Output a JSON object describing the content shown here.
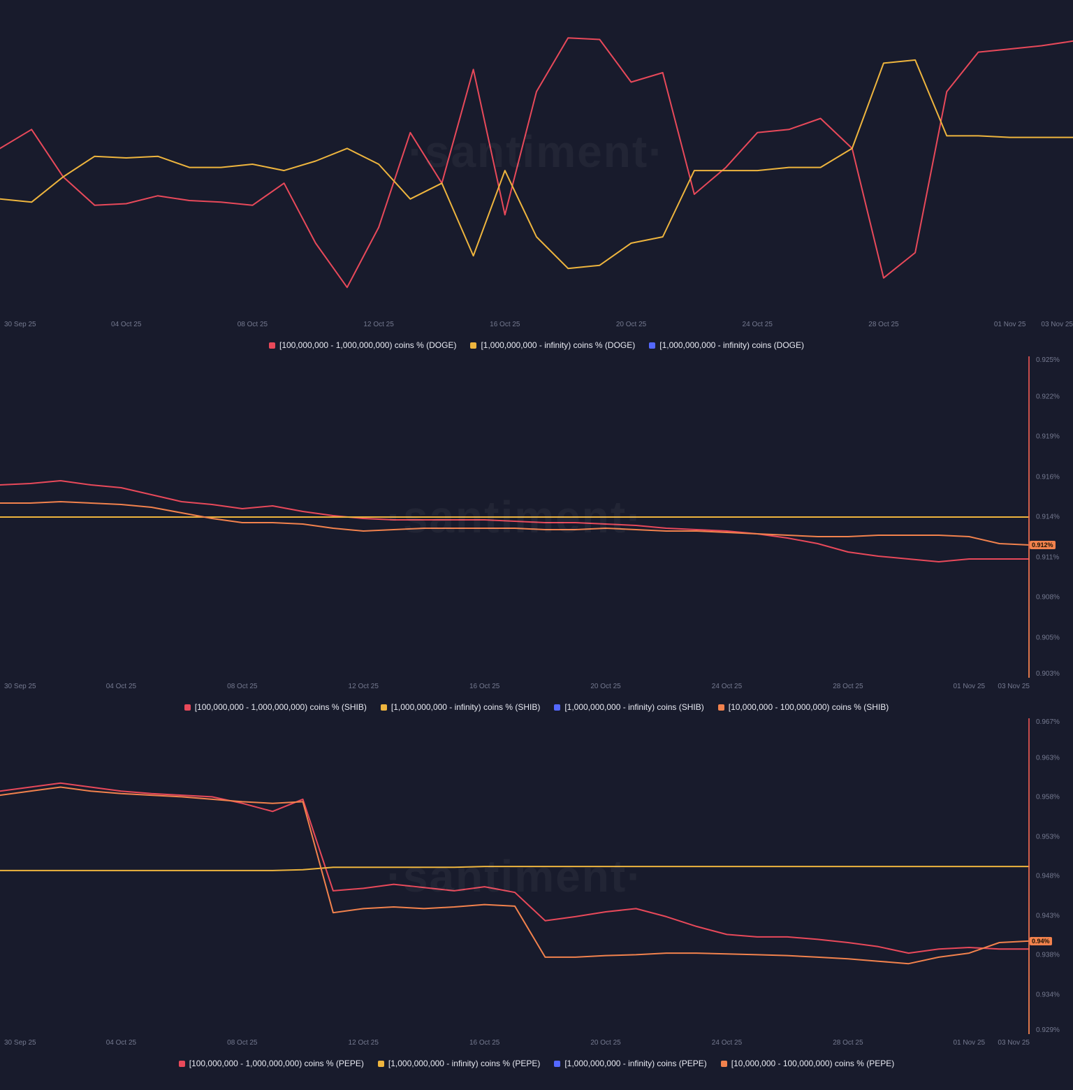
{
  "watermark": "·santiment·",
  "colors": {
    "background": "#181b2c",
    "red": "#e8495a",
    "yellow": "#eeb53e",
    "orange": "#f2824d",
    "blue": "#5468ff",
    "axis_text": "#757a90",
    "legend_text": "#e9ebf3",
    "badge_bg": "#f2824d"
  },
  "x_axis": {
    "labels": [
      "30 Sep 25",
      "04 Oct 25",
      "08 Oct 25",
      "12 Oct 25",
      "16 Oct 25",
      "20 Oct 25",
      "24 Oct 25",
      "28 Oct 25",
      "01 Nov 25",
      "03 Nov 25"
    ],
    "day_offsets": [
      0,
      4,
      8,
      12,
      16,
      20,
      24,
      28,
      32,
      34
    ],
    "total_days": 34
  },
  "chart_data": [
    {
      "type": "line",
      "asset": "DOGE",
      "y_axis_visible": false,
      "y_scale_note": "relative 0-100, y-axis labels not visible in screenshot",
      "y_range": [
        0,
        100
      ],
      "badge": null,
      "y_ticks": [],
      "series": [
        {
          "name": "[100,000,000 - 1,000,000,000) coins % (DOGE)",
          "color": "red",
          "values": [
            53,
            59,
            44,
            35,
            35.5,
            38,
            36.5,
            36,
            35,
            42,
            23,
            9,
            28,
            58,
            42,
            78,
            32,
            71,
            88,
            87.5,
            74,
            77,
            38.5,
            47,
            58,
            59,
            62.5,
            53,
            12,
            20,
            71,
            83.5,
            84.5,
            85.5,
            87
          ]
        },
        {
          "name": "[1,000,000,000 - infinity) coins % (DOGE)",
          "color": "yellow",
          "values": [
            37,
            36,
            44,
            50.5,
            50,
            50.5,
            47,
            47,
            48,
            46,
            49,
            53,
            48,
            37,
            42,
            19,
            46,
            25,
            15,
            16,
            23,
            25,
            46,
            46,
            46,
            47,
            47,
            53,
            80,
            81,
            57,
            57,
            56.5,
            56.5,
            56.5
          ]
        },
        {
          "name": "[1,000,000,000 - infinity) coins (DOGE)",
          "color": "blue",
          "values": []
        }
      ]
    },
    {
      "type": "line",
      "asset": "SHIB",
      "y_axis_visible": true,
      "y_ticks": [
        "0.925%",
        "0.922%",
        "0.919%",
        "0.916%",
        "0.914%",
        "0.911%",
        "0.908%",
        "0.905%",
        "0.903%"
      ],
      "y_range": [
        0.9025,
        0.9255
      ],
      "badge": {
        "label": "0.912%",
        "value": 0.912
      },
      "series": [
        {
          "name": "[100,000,000 - 1,000,000,000) coins % (SHIB)",
          "color": "red",
          "values": [
            0.9163,
            0.9164,
            0.9166,
            0.9163,
            0.9161,
            0.9156,
            0.9151,
            0.9149,
            0.9146,
            0.9148,
            0.9144,
            0.9141,
            0.9139,
            0.9138,
            0.9138,
            0.9138,
            0.9138,
            0.9137,
            0.9136,
            0.9136,
            0.9135,
            0.9134,
            0.9132,
            0.9131,
            0.913,
            0.9128,
            0.9125,
            0.9121,
            0.9115,
            0.9112,
            0.911,
            0.9108,
            0.911,
            0.911,
            0.911
          ]
        },
        {
          "name": "[1,000,000,000 - infinity) coins % (SHIB)",
          "color": "yellow",
          "values": [
            0.914,
            0.914,
            0.914,
            0.914,
            0.914,
            0.914,
            0.914,
            0.914,
            0.914,
            0.914,
            0.914,
            0.914,
            0.914,
            0.914,
            0.914,
            0.914,
            0.914,
            0.914,
            0.914,
            0.914,
            0.914,
            0.914,
            0.914,
            0.914,
            0.914,
            0.914,
            0.914,
            0.914,
            0.914,
            0.914,
            0.914,
            0.914,
            0.914,
            0.914,
            0.914
          ]
        },
        {
          "name": "[1,000,000,000 - infinity) coins (SHIB)",
          "color": "blue",
          "values": []
        },
        {
          "name": "[10,000,000 - 100,000,000) coins % (SHIB)",
          "color": "orange",
          "values": [
            0.915,
            0.915,
            0.9151,
            0.915,
            0.9149,
            0.9147,
            0.9143,
            0.9139,
            0.9136,
            0.9136,
            0.9135,
            0.9132,
            0.913,
            0.9131,
            0.9132,
            0.9132,
            0.9132,
            0.9132,
            0.9131,
            0.9131,
            0.9132,
            0.9131,
            0.913,
            0.913,
            0.9129,
            0.9128,
            0.9127,
            0.9126,
            0.9126,
            0.9127,
            0.9127,
            0.9127,
            0.9126,
            0.9121,
            0.912
          ]
        }
      ]
    },
    {
      "type": "line",
      "asset": "PEPE",
      "y_axis_visible": true,
      "y_ticks": [
        "0.967%",
        "0.963%",
        "0.958%",
        "0.953%",
        "0.948%",
        "0.943%",
        "0.938%",
        "0.934%",
        "0.929%"
      ],
      "y_range": [
        0.9285,
        0.9675
      ],
      "badge": {
        "label": "0.94%",
        "value": 0.94
      },
      "series": [
        {
          "name": "[100,000,000 - 1,000,000,000) coins % (PEPE)",
          "color": "red",
          "values": [
            0.9585,
            0.959,
            0.9595,
            0.959,
            0.9585,
            0.9582,
            0.958,
            0.9578,
            0.957,
            0.956,
            0.9575,
            0.9462,
            0.9465,
            0.947,
            0.9466,
            0.9462,
            0.9467,
            0.946,
            0.9425,
            0.943,
            0.9436,
            0.944,
            0.943,
            0.9418,
            0.9408,
            0.9405,
            0.9405,
            0.9402,
            0.9398,
            0.9393,
            0.9385,
            0.939,
            0.9392,
            0.939,
            0.939
          ]
        },
        {
          "name": "[1,000,000,000 - infinity) coins % (PEPE)",
          "color": "yellow",
          "values": [
            0.9487,
            0.9487,
            0.9487,
            0.9487,
            0.9487,
            0.9487,
            0.9487,
            0.9487,
            0.9487,
            0.9487,
            0.9488,
            0.9491,
            0.9491,
            0.9491,
            0.9491,
            0.9491,
            0.9492,
            0.9492,
            0.9492,
            0.9492,
            0.9492,
            0.9492,
            0.9492,
            0.9492,
            0.9492,
            0.9492,
            0.9492,
            0.9492,
            0.9492,
            0.9492,
            0.9492,
            0.9492,
            0.9492,
            0.9492,
            0.9492
          ]
        },
        {
          "name": "[1,000,000,000 - infinity) coins (PEPE)",
          "color": "blue",
          "values": []
        },
        {
          "name": "[10,000,000 - 100,000,000) coins % (PEPE)",
          "color": "orange",
          "values": [
            0.958,
            0.9585,
            0.959,
            0.9585,
            0.9582,
            0.958,
            0.9578,
            0.9575,
            0.9572,
            0.957,
            0.9572,
            0.9435,
            0.944,
            0.9442,
            0.944,
            0.9442,
            0.9445,
            0.9443,
            0.938,
            0.938,
            0.9382,
            0.9383,
            0.9385,
            0.9385,
            0.9384,
            0.9383,
            0.9382,
            0.938,
            0.9378,
            0.9375,
            0.9372,
            0.938,
            0.9385,
            0.9398,
            0.94
          ]
        }
      ]
    }
  ]
}
